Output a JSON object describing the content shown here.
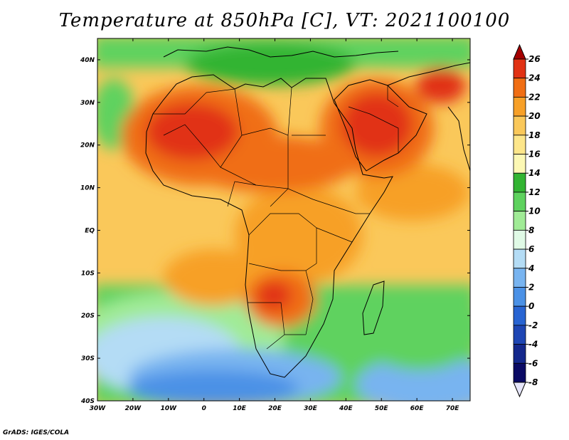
{
  "title": "Temperature at 850hPa [C], VT: 2021100100",
  "credit": "GrADS: IGES/COLA",
  "map": {
    "lon_range": [
      -30,
      75
    ],
    "lat_range": [
      -40,
      45
    ],
    "lon_ticks": [
      "30W",
      "20W",
      "10W",
      "0",
      "10E",
      "20E",
      "30E",
      "40E",
      "50E",
      "60E",
      "70E"
    ],
    "lat_ticks": [
      "40N",
      "30N",
      "20N",
      "10N",
      "EQ",
      "10S",
      "20S",
      "30S",
      "40S"
    ]
  },
  "colorbar": {
    "labels": [
      "26",
      "24",
      "22",
      "20",
      "18",
      "16",
      "14",
      "12",
      "10",
      "8",
      "6",
      "4",
      "2",
      "0",
      "-2",
      "-4",
      "-6",
      "-8"
    ],
    "colors": [
      "#a50000",
      "#e13214",
      "#f06e14",
      "#f7a028",
      "#fac85a",
      "#fde68a",
      "#fcf8b4",
      "#32b432",
      "#5ed25e",
      "#a0eb96",
      "#e0fae6",
      "#b4dcf5",
      "#78b4f0",
      "#4b91e6",
      "#2864d2",
      "#1e46b4",
      "#14288c",
      "#0a0a64",
      "#e6e6fa"
    ]
  }
}
